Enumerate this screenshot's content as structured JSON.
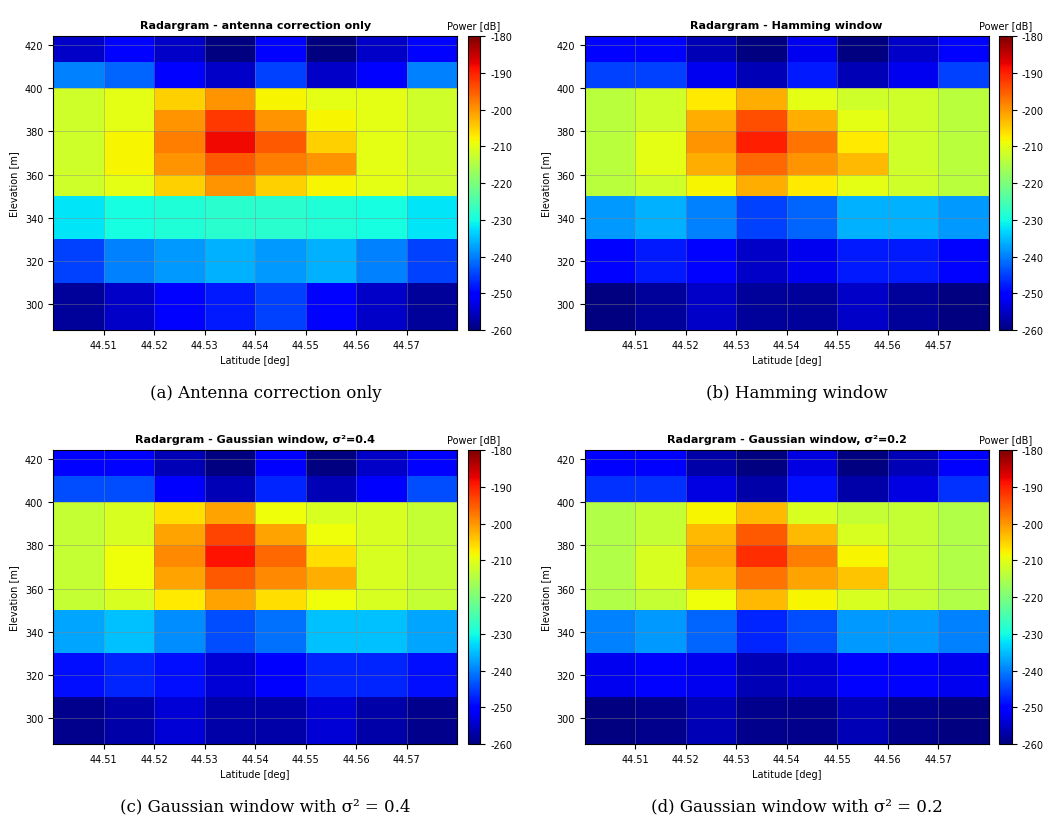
{
  "chart_data": [
    {
      "type": "heatmap",
      "title": "Radargram - antenna correction only",
      "caption": "(a) Antenna correction only",
      "xlabel": "Latitude [deg]",
      "ylabel": "Elevation [m]",
      "x_edges": [
        44.5,
        44.51,
        44.52,
        44.53,
        44.54,
        44.55,
        44.56,
        44.57,
        44.58
      ],
      "y_edges": [
        288,
        310,
        330,
        350,
        360,
        370,
        380,
        390,
        400,
        412,
        424
      ],
      "cells": [
        [
          -258,
          -255,
          -250,
          -248,
          -245,
          -250,
          -255,
          -258
        ],
        [
          -245,
          -240,
          -238,
          -236,
          -238,
          -236,
          -240,
          -245
        ],
        [
          -232,
          -230,
          -229,
          -228,
          -228,
          -229,
          -230,
          -232
        ],
        [
          -212,
          -210,
          -205,
          -200,
          -205,
          -208,
          -210,
          -212
        ],
        [
          -212,
          -208,
          -200,
          -195,
          -198,
          -200,
          -210,
          -212
        ],
        [
          -212,
          -208,
          -198,
          -188,
          -195,
          -205,
          -210,
          -212
        ],
        [
          -212,
          -210,
          -200,
          -192,
          -200,
          -208,
          -210,
          -212
        ],
        [
          -212,
          -210,
          -205,
          -200,
          -208,
          -210,
          -210,
          -212
        ],
        [
          -240,
          -242,
          -250,
          -255,
          -245,
          -255,
          -250,
          -240
        ],
        [
          -255,
          -250,
          -255,
          -260,
          -250,
          -260,
          -255,
          -250
        ]
      ],
      "xlim": [
        44.5,
        44.58
      ],
      "ylim": [
        288,
        424
      ],
      "xticks": [
        44.51,
        44.52,
        44.53,
        44.54,
        44.55,
        44.56,
        44.57
      ],
      "yticks": [
        300,
        320,
        340,
        360,
        380,
        400,
        420
      ],
      "grid": true,
      "colorbar": {
        "label": "Power [dB]",
        "range": [
          -260,
          -180
        ],
        "ticks": [
          -180,
          -190,
          -200,
          -210,
          -220,
          -230,
          -240,
          -250,
          -260
        ]
      }
    },
    {
      "type": "heatmap",
      "title": "Radargram - Hamming window",
      "caption": "(b) Hamming window",
      "xlabel": "Latitude [deg]",
      "ylabel": "Elevation [m]",
      "x_edges": [
        44.5,
        44.51,
        44.52,
        44.53,
        44.54,
        44.55,
        44.56,
        44.57,
        44.58
      ],
      "y_edges": [
        288,
        310,
        330,
        350,
        360,
        370,
        380,
        390,
        400,
        412,
        424
      ],
      "cells": [
        [
          -260,
          -258,
          -255,
          -258,
          -258,
          -255,
          -258,
          -260
        ],
        [
          -250,
          -248,
          -250,
          -255,
          -252,
          -248,
          -248,
          -250
        ],
        [
          -238,
          -236,
          -240,
          -245,
          -242,
          -236,
          -236,
          -238
        ],
        [
          -214,
          -212,
          -208,
          -202,
          -207,
          -210,
          -212,
          -214
        ],
        [
          -214,
          -210,
          -202,
          -196,
          -200,
          -203,
          -212,
          -214
        ],
        [
          -214,
          -210,
          -200,
          -190,
          -197,
          -207,
          -212,
          -214
        ],
        [
          -214,
          -212,
          -202,
          -194,
          -202,
          -210,
          -212,
          -214
        ],
        [
          -214,
          -212,
          -207,
          -202,
          -210,
          -212,
          -212,
          -214
        ],
        [
          -245,
          -245,
          -252,
          -256,
          -248,
          -256,
          -252,
          -245
        ],
        [
          -250,
          -250,
          -256,
          -260,
          -252,
          -260,
          -255,
          -250
        ]
      ],
      "xlim": [
        44.5,
        44.58
      ],
      "ylim": [
        288,
        424
      ],
      "xticks": [
        44.51,
        44.52,
        44.53,
        44.54,
        44.55,
        44.56,
        44.57
      ],
      "yticks": [
        300,
        320,
        340,
        360,
        380,
        400,
        420
      ],
      "grid": true,
      "colorbar": {
        "label": "Power [dB]",
        "range": [
          -260,
          -180
        ],
        "ticks": [
          -180,
          -190,
          -200,
          -210,
          -220,
          -230,
          -240,
          -250,
          -260
        ]
      }
    },
    {
      "type": "heatmap",
      "title": "Radargram - Gaussian window, σ²=0.4",
      "caption": "(c) Gaussian window with σ² = 0.4",
      "xlabel": "Latitude [deg]",
      "ylabel": "Elevation [m]",
      "x_edges": [
        44.5,
        44.51,
        44.52,
        44.53,
        44.54,
        44.55,
        44.56,
        44.57,
        44.58
      ],
      "y_edges": [
        288,
        310,
        330,
        350,
        360,
        370,
        380,
        390,
        400,
        412,
        424
      ],
      "cells": [
        [
          -259,
          -257,
          -254,
          -257,
          -257,
          -254,
          -257,
          -259
        ],
        [
          -249,
          -247,
          -249,
          -254,
          -251,
          -247,
          -247,
          -249
        ],
        [
          -237,
          -235,
          -239,
          -244,
          -241,
          -235,
          -235,
          -237
        ],
        [
          -213,
          -211,
          -207,
          -201,
          -206,
          -209,
          -211,
          -213
        ],
        [
          -213,
          -209,
          -201,
          -195,
          -199,
          -202,
          -211,
          -213
        ],
        [
          -213,
          -209,
          -199,
          -189,
          -196,
          -206,
          -211,
          -213
        ],
        [
          -213,
          -211,
          -201,
          -193,
          -201,
          -209,
          -211,
          -213
        ],
        [
          -213,
          -211,
          -206,
          -201,
          -209,
          -211,
          -211,
          -213
        ],
        [
          -244,
          -244,
          -251,
          -256,
          -247,
          -256,
          -251,
          -244
        ],
        [
          -250,
          -250,
          -256,
          -260,
          -251,
          -260,
          -255,
          -250
        ]
      ],
      "xlim": [
        44.5,
        44.58
      ],
      "ylim": [
        288,
        424
      ],
      "xticks": [
        44.51,
        44.52,
        44.53,
        44.54,
        44.55,
        44.56,
        44.57
      ],
      "yticks": [
        300,
        320,
        340,
        360,
        380,
        400,
        420
      ],
      "grid": true,
      "colorbar": {
        "label": "Power [dB]",
        "range": [
          -260,
          -180
        ],
        "ticks": [
          -180,
          -190,
          -200,
          -210,
          -220,
          -230,
          -240,
          -250,
          -260
        ]
      }
    },
    {
      "type": "heatmap",
      "title": "Radargram - Gaussian window, σ²=0.2",
      "caption": "(d) Gaussian window with σ² = 0.2",
      "xlabel": "Latitude [deg]",
      "ylabel": "Elevation [m]",
      "x_edges": [
        44.5,
        44.51,
        44.52,
        44.53,
        44.54,
        44.55,
        44.56,
        44.57,
        44.58
      ],
      "y_edges": [
        288,
        310,
        330,
        350,
        360,
        370,
        380,
        390,
        400,
        412,
        424
      ],
      "cells": [
        [
          -260,
          -259,
          -256,
          -259,
          -259,
          -256,
          -259,
          -260
        ],
        [
          -252,
          -250,
          -252,
          -256,
          -254,
          -250,
          -250,
          -252
        ],
        [
          -240,
          -238,
          -242,
          -247,
          -244,
          -238,
          -238,
          -240
        ],
        [
          -215,
          -213,
          -209,
          -203,
          -208,
          -211,
          -213,
          -215
        ],
        [
          -215,
          -211,
          -203,
          -197,
          -201,
          -204,
          -213,
          -215
        ],
        [
          -215,
          -211,
          -201,
          -191,
          -198,
          -208,
          -213,
          -215
        ],
        [
          -215,
          -213,
          -203,
          -195,
          -203,
          -211,
          -213,
          -215
        ],
        [
          -215,
          -213,
          -208,
          -203,
          -211,
          -213,
          -213,
          -215
        ],
        [
          -246,
          -246,
          -253,
          -257,
          -249,
          -257,
          -253,
          -246
        ],
        [
          -251,
          -251,
          -257,
          -260,
          -253,
          -260,
          -256,
          -251
        ]
      ],
      "xlim": [
        44.5,
        44.58
      ],
      "ylim": [
        288,
        424
      ],
      "xticks": [
        44.51,
        44.52,
        44.53,
        44.54,
        44.55,
        44.56,
        44.57
      ],
      "yticks": [
        300,
        320,
        340,
        360,
        380,
        400,
        420
      ],
      "grid": true,
      "colorbar": {
        "label": "Power [dB]",
        "range": [
          -260,
          -180
        ],
        "ticks": [
          -180,
          -190,
          -200,
          -210,
          -220,
          -230,
          -240,
          -250,
          -260
        ]
      }
    }
  ]
}
